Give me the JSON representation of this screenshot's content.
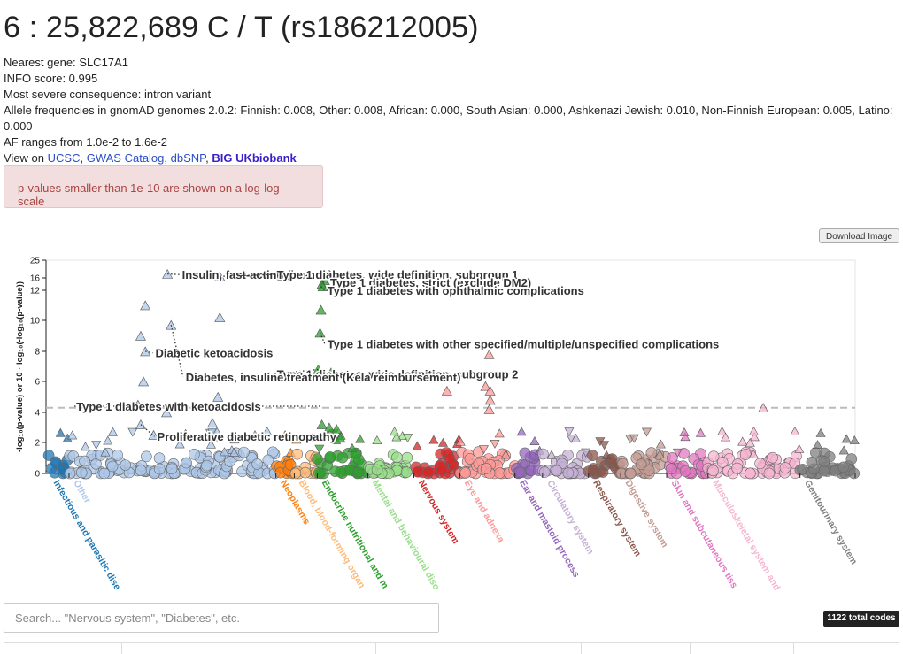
{
  "variant": {
    "title": "6 : 25,822,689 C / T (rs186212005)",
    "nearest_gene": "Nearest gene: SLC17A1",
    "info_score": "INFO score: 0.995",
    "consequence": "Most severe consequence: intron variant",
    "allele_freqs": "Allele frequencies in gnomAD genomes 2.0.2: Finnish: 0.008, Other: 0.008, African: 0.000, South Asian: 0.000, Ashkenazi Jewish: 0.010, Non-Finnish European: 0.005, Latino: 0.000",
    "af_range": "AF ranges from 1.0e-2 to 1.6e-2",
    "view_on": "View on",
    "links": [
      "UCSC",
      "GWAS Catalog",
      "dbSNP",
      "BIG UKbiobank"
    ],
    "sep": ","
  },
  "alert_text": "p-values smaller than 1e-10 are shown on a log-log scale",
  "download_label": "Download Image",
  "search": {
    "placeholder": "Search... \"Nervous system\", \"Diabetes\", etc."
  },
  "total_codes": "1122 total codes",
  "chart_data": {
    "type": "scatter",
    "ylabel": "-log₁₀(p-value) or 10 · log₁₀(-log₁₀(p-value))",
    "y_ticks": [
      "0",
      "2",
      "4",
      "6",
      "8",
      "10",
      "12",
      "16",
      "25"
    ],
    "y_tick_values": [
      0,
      2,
      4,
      6,
      8,
      10,
      12,
      16,
      25
    ],
    "threshold": 4.3,
    "categories": [
      {
        "name": "Infectious and parasitic diseases",
        "label": "Infectious and parasitic dise",
        "color": "#1f77b4",
        "span": [
          0.3,
          2.5
        ]
      },
      {
        "name": "Other",
        "label": "Other",
        "color": "#aec7e8",
        "span": [
          2.5,
          25
        ]
      },
      {
        "name": "Neoplasms",
        "label": "Neoplasms",
        "color": "#ff7f0e",
        "span": [
          25,
          27
        ]
      },
      {
        "name": "Blood, blood-forming organs",
        "label": "Blood, blood-forming organ",
        "color": "#ffbb78",
        "span": [
          27,
          29.5
        ]
      },
      {
        "name": "Endocrine nutritional and metabolic",
        "label": "Endocrine nutritional and m",
        "color": "#2ca02c",
        "span": [
          29.5,
          35
        ]
      },
      {
        "name": "Mental and behavioural disorders",
        "label": "Mental and behavioural diso",
        "color": "#98df8a",
        "span": [
          35,
          40
        ]
      },
      {
        "name": "Nervous system",
        "label": "Nervous system",
        "color": "#d62728",
        "span": [
          40,
          45
        ]
      },
      {
        "name": "Eye and adnexa",
        "label": "Eye and adnexa",
        "color": "#ff9896",
        "span": [
          45,
          51
        ]
      },
      {
        "name": "Ear and mastoid process",
        "label": "Ear and mastoid process",
        "color": "#9467bd",
        "span": [
          51,
          54
        ]
      },
      {
        "name": "Circulatory system",
        "label": "Circulatory system",
        "color": "#c5b0d5",
        "span": [
          54,
          59
        ]
      },
      {
        "name": "Respiratory system",
        "label": "Respiratory system",
        "color": "#8c564b",
        "span": [
          59,
          62.5
        ]
      },
      {
        "name": "Digestive system",
        "label": "Digestive system",
        "color": "#c49c94",
        "span": [
          62.5,
          67.5
        ]
      },
      {
        "name": "Skin and subcutaneous tissue",
        "label": "Skin and subcutaneous tiss",
        "color": "#e377c2",
        "span": [
          67.5,
          72
        ]
      },
      {
        "name": "Musculoskeletal system",
        "label": "Musculoskeletal system and",
        "color": "#f7b6d2",
        "span": [
          72,
          82
        ]
      },
      {
        "name": "Genitourinary system",
        "label": "Genitourinary system",
        "color": "#7f7f7f",
        "span": [
          82,
          88
        ]
      }
    ],
    "x_range": [
      0,
      88
    ],
    "highlights": [
      {
        "x": 10.8,
        "y": 11.0,
        "cat": "Other",
        "marker": "tri-up"
      },
      {
        "x": 10.3,
        "y": 9.0,
        "cat": "Other",
        "marker": "tri-up"
      },
      {
        "x": 10.8,
        "y": 8.0,
        "cat": "Other",
        "marker": "tri-up"
      },
      {
        "x": 10.6,
        "y": 6.0,
        "cat": "Other",
        "marker": "tri-up"
      },
      {
        "x": 10.0,
        "y": 4.5,
        "cat": "Other",
        "marker": "tri-up"
      },
      {
        "x": 10.3,
        "y": 3.2,
        "cat": "Other",
        "marker": "tri-up"
      },
      {
        "x": 11.7,
        "y": 2.5,
        "cat": "Other",
        "marker": "tri-up"
      },
      {
        "x": 13.2,
        "y": 18.0,
        "cat": "Other",
        "marker": "tri-up"
      },
      {
        "x": 13.6,
        "y": 9.7,
        "cat": "Other",
        "marker": "tri-up"
      },
      {
        "x": 13.1,
        "y": 4.0,
        "cat": "Other",
        "marker": "tri-up"
      },
      {
        "x": 18.9,
        "y": 16.8,
        "cat": "Other",
        "marker": "tri-up"
      },
      {
        "x": 18.9,
        "y": 10.2,
        "cat": "Other",
        "marker": "tri-up"
      },
      {
        "x": 18.7,
        "y": 5.0,
        "cat": "Other",
        "marker": "tri-up"
      },
      {
        "x": 18.1,
        "y": 3.3,
        "cat": "Other",
        "marker": "tri-up"
      },
      {
        "x": 30.3,
        "y": 15.2,
        "cat": "Endocrine nutritional and metabolic",
        "marker": "tri-up"
      },
      {
        "x": 30.0,
        "y": 14.0,
        "cat": "Endocrine nutritional and metabolic",
        "marker": "tri-up"
      },
      {
        "x": 30.1,
        "y": 13.2,
        "cat": "Endocrine nutritional and metabolic",
        "marker": "tri-up"
      },
      {
        "x": 29.9,
        "y": 10.7,
        "cat": "Endocrine nutritional and metabolic",
        "marker": "tri-up"
      },
      {
        "x": 29.8,
        "y": 9.2,
        "cat": "Endocrine nutritional and metabolic",
        "marker": "tri-up"
      },
      {
        "x": 29.6,
        "y": 6.8,
        "cat": "Endocrine nutritional and metabolic",
        "marker": "tri-up"
      },
      {
        "x": 31.0,
        "y": 6.6,
        "cat": "Endocrine nutritional and metabolic",
        "marker": "tri-up"
      },
      {
        "x": 30.0,
        "y": 3.2,
        "cat": "Endocrine nutritional and metabolic",
        "marker": "tri-up"
      },
      {
        "x": 30.8,
        "y": 3.0,
        "cat": "Endocrine nutritional and metabolic",
        "marker": "tri-up"
      },
      {
        "x": 31.6,
        "y": 2.9,
        "cat": "Endocrine nutritional and metabolic",
        "marker": "tri-up"
      },
      {
        "x": 30.7,
        "y": 2.5,
        "cat": "Endocrine nutritional and metabolic",
        "marker": "tri-up"
      },
      {
        "x": 31.5,
        "y": 2.2,
        "cat": "Endocrine nutritional and metabolic",
        "marker": "tri-up"
      },
      {
        "x": 32.0,
        "y": 2.3,
        "cat": "Endocrine nutritional and metabolic",
        "marker": "tri-up"
      },
      {
        "x": 48.2,
        "y": 7.8,
        "cat": "Eye and adnexa",
        "marker": "tri-up"
      },
      {
        "x": 47.8,
        "y": 5.7,
        "cat": "Eye and adnexa",
        "marker": "tri-up"
      },
      {
        "x": 48.3,
        "y": 5.4,
        "cat": "Eye and adnexa",
        "marker": "tri-up"
      },
      {
        "x": 48.3,
        "y": 4.8,
        "cat": "Eye and adnexa",
        "marker": "tri-up"
      },
      {
        "x": 48.2,
        "y": 4.2,
        "cat": "Eye and adnexa",
        "marker": "tri-up"
      },
      {
        "x": 43.6,
        "y": 5.4,
        "cat": "Eye and adnexa",
        "marker": "tri-up"
      },
      {
        "x": 78.0,
        "y": 4.3,
        "cat": "Musculoskeletal system",
        "marker": "tri-up"
      }
    ],
    "labels": [
      {
        "text": "Insulin, fast-acting (human)",
        "x": 14.5,
        "y": 17.7,
        "from": [
          13.2,
          18.0
        ]
      },
      {
        "text": "Type 1 diabetes, wide definition, subgroup 1",
        "x": 24.8,
        "y": 17.7,
        "from": [
          18.9,
          16.8
        ]
      },
      {
        "text": "Type 1 diabetes, strict (exclude DM2)",
        "x": 30.6,
        "y": 14.6,
        "from": [
          30.1,
          14.6
        ]
      },
      {
        "text": "Type 1 diabetes with ophthalmic complications",
        "x": 30.3,
        "y": 12.0,
        "from": [
          29.9,
          13.2
        ]
      },
      {
        "text": "Type 1 diabetes with other specified/multiple/unspecified complications",
        "x": 30.3,
        "y": 8.5,
        "from": [
          29.8,
          9.2
        ]
      },
      {
        "text": "Diabetic ketoacidosis",
        "x": 11.6,
        "y": 7.9,
        "from": [
          10.8,
          8.0
        ]
      },
      {
        "text": "Type 1 diabetes, wide definition, subgroup 2",
        "x": 24.8,
        "y": 6.5,
        "from": [
          29.6,
          6.8
        ]
      },
      {
        "text": "Diabetes, insuline treatment (Kela reimbursement)",
        "x": 14.9,
        "y": 6.3,
        "from": [
          13.6,
          9.7
        ]
      },
      {
        "text": "Type 1 diabetes with ketoacidosis",
        "x": 3.0,
        "y": 4.4,
        "from": [
          29.8,
          4.4
        ]
      },
      {
        "text": "Proliferative diabetic retinopathy",
        "x": 11.8,
        "y": 2.4,
        "from": [
          10.3,
          3.2
        ]
      }
    ]
  }
}
